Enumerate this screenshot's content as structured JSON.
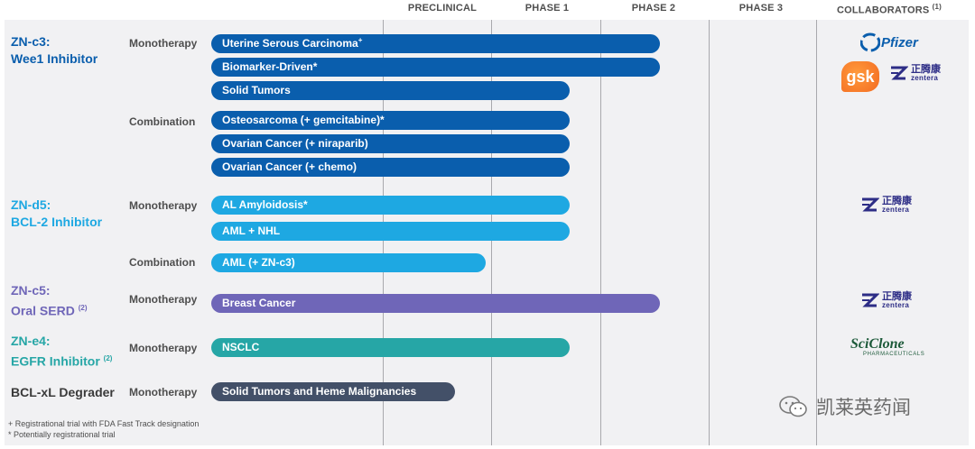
{
  "chart_data": {
    "type": "bar",
    "stages": [
      "PRECLINICAL",
      "PHASE 1",
      "PHASE 2",
      "PHASE 3"
    ],
    "collaborators_header": "COLLABORATORS",
    "collaborators_note": "(1)",
    "programs": [
      {
        "name": "ZN-c3:",
        "target": "Wee1 Inhibitor",
        "note": "",
        "color": "#0a5ead",
        "groups": [
          {
            "type": "Monotherapy",
            "indications": [
              {
                "label": "Uterine Serous Carcinoma",
                "mark": "+",
                "progress": 3.0
              },
              {
                "label": "Biomarker-Driven*",
                "mark": "",
                "progress": 3.0
              },
              {
                "label": "Solid Tumors",
                "mark": "",
                "progress": 2.0
              }
            ]
          },
          {
            "type": "Combination",
            "indications": [
              {
                "label": "Osteosarcoma (+ gemcitabine)*",
                "mark": "",
                "progress": 2.0
              },
              {
                "label": "Ovarian Cancer (+ niraparib)",
                "mark": "",
                "progress": 2.0
              },
              {
                "label": "Ovarian Cancer (+ chemo)",
                "mark": "",
                "progress": 2.0
              }
            ]
          }
        ],
        "collaborators": [
          "pfizer",
          "gsk",
          "zentera"
        ]
      },
      {
        "name": "ZN-d5:",
        "target": "BCL-2 Inhibitor",
        "note": "",
        "color": "#1ea8e2",
        "groups": [
          {
            "type": "Monotherapy",
            "indications": [
              {
                "label": "AL Amyloidosis*",
                "mark": "",
                "progress": 2.0
              },
              {
                "label": "AML + NHL",
                "mark": "",
                "progress": 2.0
              }
            ]
          },
          {
            "type": "Combination",
            "indications": [
              {
                "label": "AML (+ ZN-c3)",
                "mark": "",
                "progress": 1.1
              }
            ]
          }
        ],
        "collaborators": [
          "zentera"
        ]
      },
      {
        "name": "ZN-c5:",
        "target": "Oral SERD",
        "note": "(2)",
        "color": "#6f66b8",
        "groups": [
          {
            "type": "Monotherapy",
            "indications": [
              {
                "label": "Breast Cancer",
                "mark": "",
                "progress": 3.0
              }
            ]
          }
        ],
        "collaborators": [
          "zentera"
        ]
      },
      {
        "name": "ZN-e4:",
        "target": "EGFR Inhibitor",
        "note": "(2)",
        "color": "#26a6a6",
        "groups": [
          {
            "type": "Monotherapy",
            "indications": [
              {
                "label": "NSCLC",
                "mark": "",
                "progress": 2.0
              }
            ]
          }
        ],
        "collaborators": [
          "sciclone"
        ]
      },
      {
        "name": "BCL-xL Degrader",
        "target": "",
        "note": "",
        "color": "#435068",
        "groups": [
          {
            "type": "Monotherapy",
            "indications": [
              {
                "label": "Solid Tumors and Heme Malignancies",
                "mark": "",
                "progress": 0.8
              }
            ]
          }
        ],
        "collaborators": []
      }
    ],
    "footnotes": [
      "+ Registrational trial with FDA Fast Track designation",
      "* Potentially registrational trial"
    ]
  },
  "logos": {
    "pfizer": "Pfizer",
    "gsk": "gsk",
    "zentera_cn": "正腾康",
    "zentera_en": "zentera",
    "sciclone": "SciClone",
    "sciclone_sub": "PHARMACEUTICALS"
  },
  "watermark": "凯莱英药闻"
}
